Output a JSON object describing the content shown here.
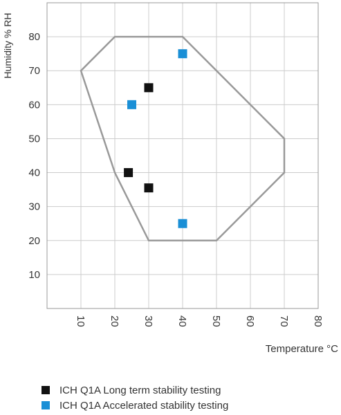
{
  "chart_data": {
    "type": "scatter",
    "xlabel": "Temperature °C",
    "ylabel": "Humidity % RH",
    "xlim": [
      0,
      80
    ],
    "ylim": [
      0,
      90
    ],
    "xticks": [
      "10",
      "20",
      "30",
      "40",
      "50",
      "60",
      "70",
      "80"
    ],
    "yticks": [
      "10",
      "20",
      "30",
      "40",
      "50",
      "60",
      "70",
      "80"
    ],
    "grid": true,
    "legend_position": "bottom",
    "region": {
      "color": "#999999",
      "points": [
        [
          10,
          70
        ],
        [
          20,
          80
        ],
        [
          40,
          80
        ],
        [
          70,
          50
        ],
        [
          70,
          40
        ],
        [
          50,
          20
        ],
        [
          30,
          20
        ],
        [
          20,
          40
        ],
        [
          10,
          70
        ]
      ]
    },
    "series": [
      {
        "name": "ICH Q1A Long term stability testing",
        "color": "#111111",
        "points": [
          [
            30,
            65
          ],
          [
            24,
            40
          ],
          [
            30,
            35.5
          ]
        ]
      },
      {
        "name": "ICH Q1A Accelerated stability testing",
        "color": "#1a8fd6",
        "points": [
          [
            40,
            75
          ],
          [
            25,
            60
          ],
          [
            40,
            25
          ]
        ]
      }
    ]
  }
}
